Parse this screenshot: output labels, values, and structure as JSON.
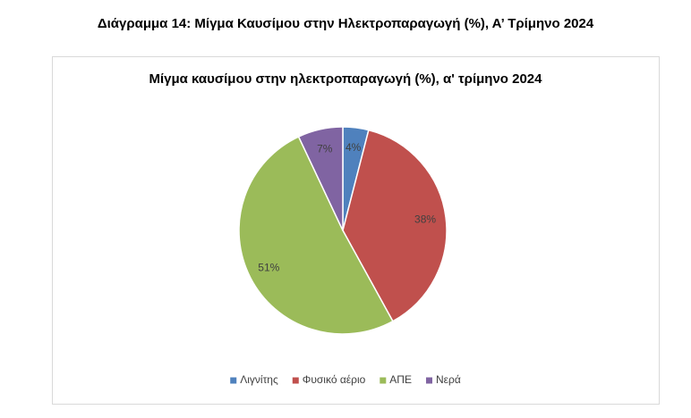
{
  "caption": "Διάγραμμα 14: Μίγμα Καυσίμου στην Ηλεκτροπαραγωγή (%), Α’ Τρίμηνο 2024",
  "chart_data": {
    "type": "pie",
    "title": "Μίγμα καυσίμου στην ηλεκτροπαραγωγή (%), α' τρίμηνο 2024",
    "categories": [
      "Λιγνίτης",
      "Φυσικό αέριο",
      "ΑΠΕ",
      "Νερά"
    ],
    "values": [
      4,
      38,
      51,
      7
    ],
    "value_labels": [
      "4%",
      "38%",
      "51%",
      "7%"
    ],
    "colors": [
      "#4f81bd",
      "#c0504d",
      "#9bbb59",
      "#8064a2"
    ],
    "legend": "bottom"
  }
}
